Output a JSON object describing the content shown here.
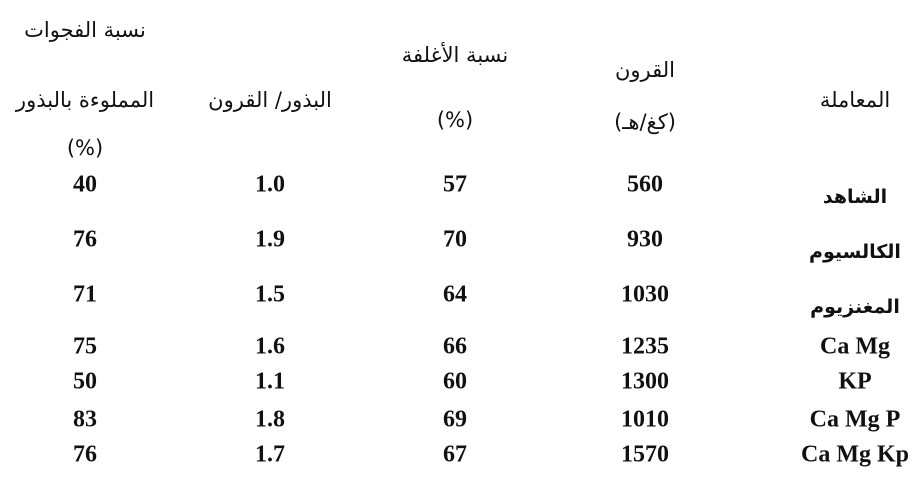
{
  "table": {
    "header": [
      [
        "المعاملة"
      ],
      [
        "القرون",
        "(كغ/هـ)"
      ],
      [
        "نسبة الأغلفة",
        "(%)"
      ],
      [
        "البذور/ القرون"
      ],
      [
        "نسبة الفجوات",
        "المملوءة بالبذور",
        "(%)"
      ]
    ],
    "rows": [
      [
        "الشاهد",
        "560",
        "57",
        "1.0",
        "40"
      ],
      [
        "الكالسيوم",
        "930",
        "70",
        "1.9",
        "76"
      ],
      [
        "المغنزيوم",
        "1030",
        "64",
        "1.5",
        "71"
      ],
      [
        "Ca Mg",
        "1235",
        "66",
        "1.6",
        "75"
      ],
      [
        "KP",
        "1300",
        "60",
        "1.1",
        "50"
      ],
      [
        "Ca Mg P",
        "1010",
        "69",
        "1.8",
        "83"
      ],
      [
        "Ca Mg Kp",
        "1570",
        "67",
        "1.7",
        "76"
      ]
    ]
  }
}
